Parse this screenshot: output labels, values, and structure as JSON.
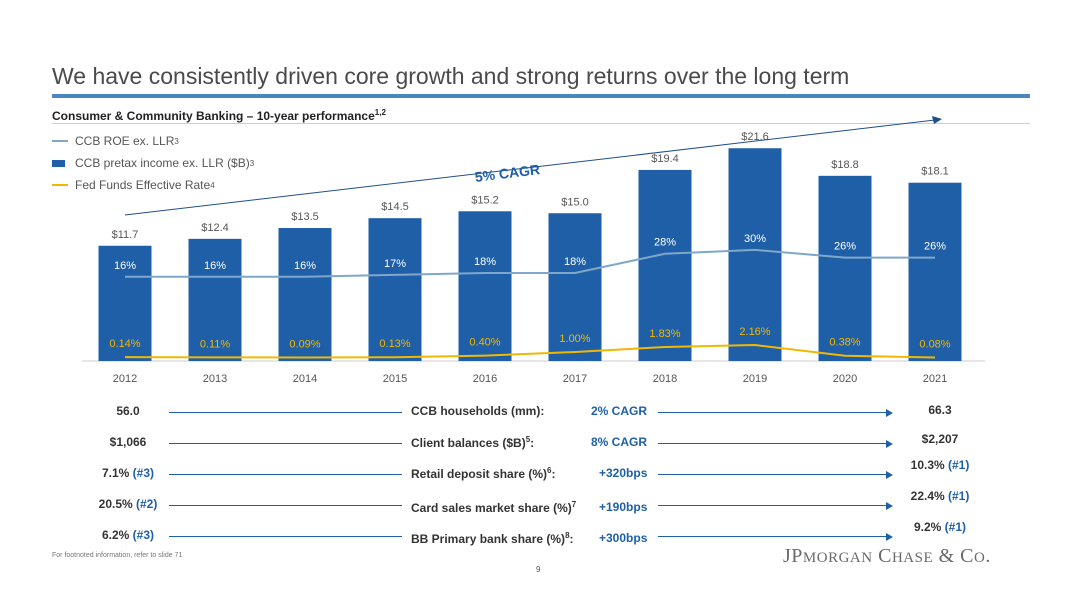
{
  "page": {
    "title": "We have consistently driven core growth and strong returns over the long term",
    "subtitle": "Consumer & Community Banking – 10-year performance",
    "subtitle_sup": "1,2",
    "footnote": "For footnoted information, refer to slide 71",
    "page_number": "9",
    "logo_text": "JPMorgan Chase & Co."
  },
  "legend": [
    {
      "label": "CCB ROE ex. LLR",
      "sup": "3",
      "color": "#7fa7c9",
      "kind": "line"
    },
    {
      "label": "CCB pretax income ex. LLR ($B)",
      "sup": "3",
      "color": "#1f5fa8",
      "kind": "bar"
    },
    {
      "label": "Fed Funds Effective Rate",
      "sup": "4",
      "color": "#f2b800",
      "kind": "line"
    }
  ],
  "chart_data": {
    "type": "bar",
    "categories": [
      "2012",
      "2013",
      "2014",
      "2015",
      "2016",
      "2017",
      "2018",
      "2019",
      "2020",
      "2021"
    ],
    "series": [
      {
        "name": "CCB pretax income ex. LLR ($B)",
        "type": "bar",
        "color": "#1f5fa8",
        "values": [
          11.7,
          12.4,
          13.5,
          14.5,
          15.2,
          15.0,
          19.4,
          21.6,
          18.8,
          18.1
        ],
        "labels": [
          "$11.7",
          "$12.4",
          "$13.5",
          "$14.5",
          "$15.2",
          "$15.0",
          "$19.4",
          "$21.6",
          "$18.8",
          "$18.1"
        ]
      },
      {
        "name": "CCB ROE ex. LLR",
        "type": "line",
        "color": "#7fa7c9",
        "values": [
          16,
          16,
          16,
          17,
          18,
          18,
          28,
          30,
          26,
          26
        ],
        "labels": [
          "16%",
          "16%",
          "16%",
          "17%",
          "18%",
          "18%",
          "28%",
          "30%",
          "26%",
          "26%"
        ]
      },
      {
        "name": "Fed Funds Effective Rate",
        "type": "line",
        "color": "#f2b800",
        "values": [
          0.14,
          0.11,
          0.09,
          0.13,
          0.4,
          1.0,
          1.83,
          2.16,
          0.38,
          0.08
        ],
        "labels": [
          "0.14%",
          "0.11%",
          "0.09%",
          "0.13%",
          "0.40%",
          "1.00%",
          "1.83%",
          "2.16%",
          "0.38%",
          "0.08%"
        ]
      }
    ],
    "annotations": [
      {
        "text": "5% CAGR",
        "kind": "trend-arrow"
      }
    ],
    "xlabel": "",
    "ylabel": "",
    "grid": false,
    "legend_position": "top-left"
  },
  "metrics": [
    {
      "start": "56.0",
      "start_rank": "",
      "label": "CCB households (mm):",
      "label_sup": "",
      "change": "2% CAGR",
      "end": "66.3",
      "end_rank": ""
    },
    {
      "start": "$1,066",
      "start_rank": "",
      "label": "Client balances ($B)",
      "label_sup": "5",
      "label_tail": ":",
      "change": "8% CAGR",
      "end": "$2,207",
      "end_rank": ""
    },
    {
      "start": "7.1% ",
      "start_rank": "(#3)",
      "label": "Retail deposit share (%)",
      "label_sup": "6",
      "label_tail": ":",
      "change": "+320bps",
      "end": "10.3% ",
      "end_rank": "(#1)"
    },
    {
      "start": "20.5% ",
      "start_rank": "(#2)",
      "label": "Card sales market share (%)",
      "label_sup": "7",
      "label_tail": "",
      "change": "+190bps",
      "end": "22.4% ",
      "end_rank": "(#1)"
    },
    {
      "start": "6.2% ",
      "start_rank": "(#3)",
      "label": "BB Primary bank share (%)",
      "label_sup": "8",
      "label_tail": ":",
      "change": "+300bps",
      "end": "9.2% ",
      "end_rank": "(#1)"
    }
  ]
}
